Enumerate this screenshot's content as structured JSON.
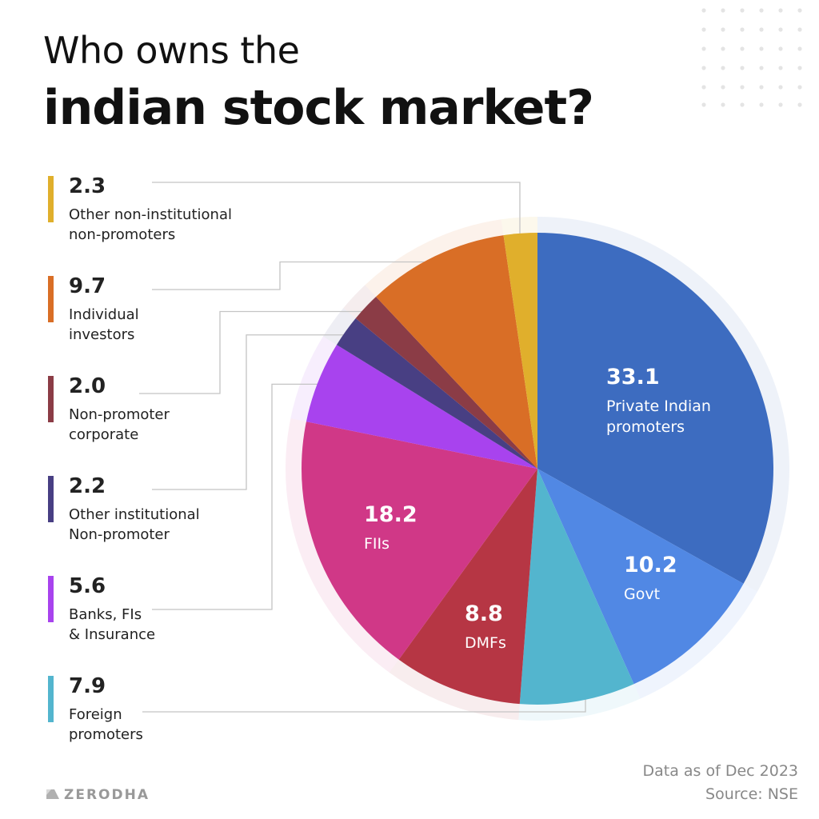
{
  "header": {
    "title_line1": "Who owns the",
    "title_line2": "indian stock market?"
  },
  "chart_data": {
    "type": "pie",
    "slices": [
      {
        "value": 33.1,
        "label": "Private Indian\npromoters",
        "color": "#3D6CC0"
      },
      {
        "value": 10.2,
        "label": "Govt",
        "color": "#5188E4"
      },
      {
        "value": 7.9,
        "label": "Foreign\npromoters",
        "color": "#53B5CE"
      },
      {
        "value": 8.8,
        "label": "DMFs",
        "color": "#B63644"
      },
      {
        "value": 18.2,
        "label": "FIIs",
        "color": "#D03887"
      },
      {
        "value": 5.6,
        "label": "Banks, FIs\n& Insurance",
        "color": "#A843EE"
      },
      {
        "value": 2.2,
        "label": "Other institutional\nNon-promoter",
        "color": "#483F83"
      },
      {
        "value": 2.0,
        "label": "Non-promoter\ncorporate",
        "color": "#8B3C46"
      },
      {
        "value": 9.7,
        "label": "Individual\ninvestors",
        "color": "#D96E26"
      },
      {
        "value": 2.3,
        "label": "Other non-institutional\nnon-promoters",
        "color": "#E0AF2C"
      }
    ]
  },
  "inline_labels": [
    {
      "value": "33.1",
      "text": "Private Indian\npromoters"
    },
    {
      "value": "10.2",
      "text": "Govt"
    },
    {
      "value": "8.8",
      "text": "DMFs"
    },
    {
      "value": "18.2",
      "text": "FIIs"
    }
  ],
  "legend": [
    {
      "value": "2.3",
      "label": "Other non-institutional\nnon-promoters",
      "color": "#E0AF2C"
    },
    {
      "value": "9.7",
      "label": "Individual\ninvestors",
      "color": "#D96E26"
    },
    {
      "value": "2.0",
      "label": "Non-promoter\ncorporate",
      "color": "#8B3C46"
    },
    {
      "value": "2.2",
      "label": "Other institutional\nNon-promoter",
      "color": "#483F83"
    },
    {
      "value": "5.6",
      "label": "Banks, FIs\n& Insurance",
      "color": "#A843EE"
    },
    {
      "value": "7.9",
      "label": "Foreign\npromoters",
      "color": "#53B5CE"
    }
  ],
  "footer": {
    "note_line1": "Data as of Dec 2023",
    "note_line2": "Source: NSE",
    "brand": "ZERODHA"
  }
}
